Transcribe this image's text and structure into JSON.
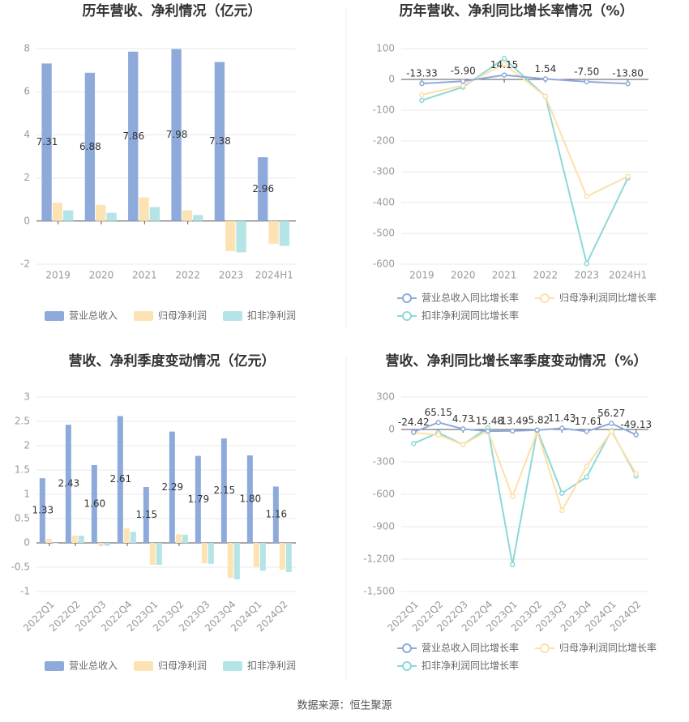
{
  "chart_data": [
    {
      "type": "bar",
      "title": "历年营收、净利情况（亿元）",
      "categories": [
        "2019",
        "2020",
        "2021",
        "2022",
        "2023",
        "2024H1"
      ],
      "series": [
        {
          "name": "营业总收入",
          "color": "#8eaadb",
          "values": [
            7.31,
            6.88,
            7.86,
            7.98,
            7.38,
            2.96
          ],
          "value_labels": [
            "7.31",
            "6.88",
            "7.86",
            "7.98",
            "7.38",
            "2.96"
          ]
        },
        {
          "name": "归母净利润",
          "color": "#fde3b4",
          "values": [
            0.85,
            0.75,
            1.1,
            0.5,
            -1.4,
            -1.05
          ]
        },
        {
          "name": "扣非净利润",
          "color": "#b4e4e6",
          "values": [
            0.5,
            0.38,
            0.65,
            0.28,
            -1.45,
            -1.15
          ]
        }
      ],
      "ylim": [
        -2,
        8
      ],
      "yticks": [
        -2,
        0,
        2,
        4,
        6,
        8
      ],
      "grid": true,
      "legend": "bottom"
    },
    {
      "type": "line",
      "title": "历年营收、净利同比增长率情况（%）",
      "categories": [
        "2019",
        "2020",
        "2021",
        "2022",
        "2023",
        "2024H1"
      ],
      "series": [
        {
          "name": "营业总收入同比增长率",
          "color": "#8eaadb",
          "values": [
            -13.33,
            -5.9,
            14.15,
            1.54,
            -7.5,
            -13.8
          ],
          "value_labels": [
            "-13.33",
            "-5.90",
            "14.15",
            "1.54",
            "-7.50",
            "-13.80"
          ]
        },
        {
          "name": "归母净利润同比增长率",
          "color": "#fde0a8",
          "values": [
            -50,
            -20,
            50,
            -55,
            -380,
            -315
          ]
        },
        {
          "name": "扣非净利润同比增长率",
          "color": "#8dd8d8",
          "values": [
            -68,
            -25,
            68,
            -55,
            -598,
            -320
          ]
        }
      ],
      "ylim": [
        -600,
        100
      ],
      "yticks": [
        -600,
        -500,
        -400,
        -300,
        -200,
        -100,
        0,
        100
      ],
      "grid": true,
      "legend": "bottom"
    },
    {
      "type": "bar",
      "title": "营收、净利季度变动情况（亿元）",
      "categories": [
        "2022Q1",
        "2022Q2",
        "2022Q3",
        "2022Q4",
        "2023Q1",
        "2023Q2",
        "2023Q3",
        "2023Q4",
        "2024Q1",
        "2024Q2"
      ],
      "series": [
        {
          "name": "营业总收入",
          "color": "#8eaadb",
          "values": [
            1.33,
            2.43,
            1.6,
            2.61,
            1.15,
            2.29,
            1.79,
            2.15,
            1.8,
            1.16
          ],
          "value_labels": [
            "1.33",
            "2.43",
            "1.60",
            "2.61",
            "1.15",
            "2.29",
            "1.79",
            "2.15",
            "1.80",
            "1.16"
          ]
        },
        {
          "name": "归母净利润",
          "color": "#fde3b4",
          "values": [
            0.08,
            0.15,
            -0.05,
            0.3,
            -0.45,
            0.18,
            -0.42,
            -0.72,
            -0.5,
            -0.55
          ]
        },
        {
          "name": "扣非净利润",
          "color": "#b4e4e6",
          "values": [
            -0.01,
            0.15,
            -0.06,
            0.23,
            -0.45,
            0.17,
            -0.43,
            -0.75,
            -0.57,
            -0.6
          ]
        }
      ],
      "ylim": [
        -1,
        3
      ],
      "yticks": [
        -1,
        -0.5,
        0,
        0.5,
        1,
        1.5,
        2,
        2.5,
        3
      ],
      "grid": true,
      "legend": "bottom"
    },
    {
      "type": "line",
      "title": "营收、净利同比增长率季度变动情况（%）",
      "categories": [
        "2022Q1",
        "2022Q2",
        "2022Q3",
        "2022Q4",
        "2023Q1",
        "2023Q2",
        "2023Q3",
        "2023Q4",
        "2024Q1",
        "2024Q2"
      ],
      "series": [
        {
          "name": "营业总收入同比增长率",
          "color": "#8eaadb",
          "values": [
            -24.42,
            65.15,
            4.73,
            -15.48,
            -13.49,
            -5.82,
            11.43,
            -17.61,
            56.27,
            -49.13
          ]
        },
        {
          "name": "归母净利润同比增长率",
          "color": "#fde0a8",
          "values": [
            -30,
            -50,
            -140,
            -10,
            -620,
            -20,
            -750,
            -340,
            -20,
            -410
          ]
        },
        {
          "name": "扣非净利润同比增长率",
          "color": "#8dd8d8",
          "values": [
            -130,
            -30,
            -140,
            15,
            -1250,
            -5,
            -590,
            -440,
            -10,
            -430
          ]
        }
      ],
      "ylim": [
        -1500,
        300
      ],
      "yticks": [
        {
          "value": -1500,
          "label": "-1,500"
        },
        {
          "value": -1200,
          "label": "-1,200"
        },
        -900,
        -600,
        -300,
        0,
        300
      ],
      "grid": true,
      "legend": "bottom"
    }
  ],
  "source": "数据来源：恒生聚源"
}
